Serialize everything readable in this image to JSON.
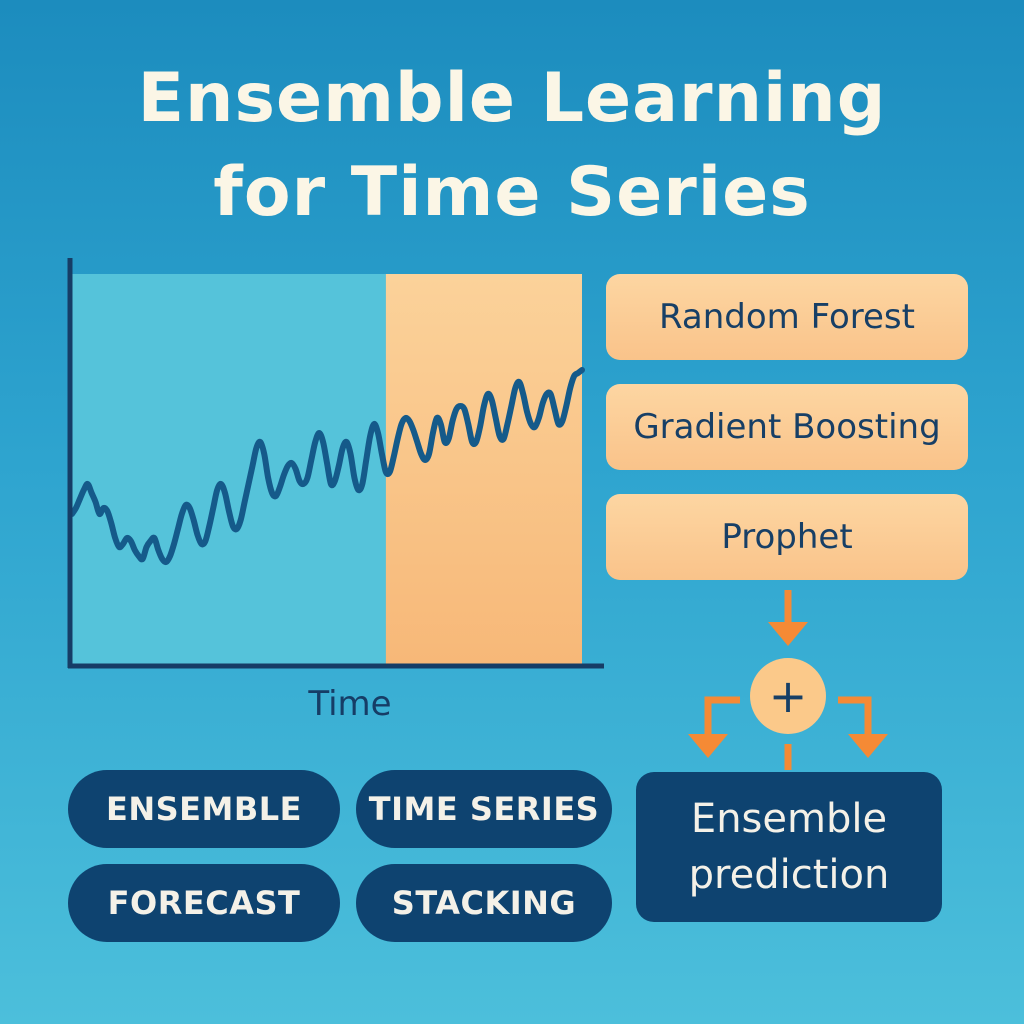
{
  "title": {
    "line1": "Ensemble Learning",
    "line2": "for Time Series"
  },
  "chart_data": {
    "type": "line",
    "xlabel": "Time",
    "ylabel": "",
    "x": [
      0,
      1,
      2,
      3,
      4,
      5,
      6,
      7,
      8,
      9,
      10,
      11,
      12,
      13,
      14,
      15,
      16,
      17,
      18,
      19,
      20,
      21,
      22,
      23,
      24,
      25,
      26,
      27,
      28,
      29,
      30,
      31,
      32,
      33,
      34,
      35,
      36,
      37,
      38,
      39,
      40,
      41,
      42,
      43,
      44,
      45,
      46,
      47,
      48,
      49,
      50,
      51,
      52,
      53,
      54,
      55,
      56,
      57,
      58,
      59,
      60,
      61,
      62,
      63,
      64,
      65,
      66,
      67,
      68,
      69,
      70,
      71,
      72,
      73,
      74,
      75,
      76,
      77,
      78,
      79,
      80,
      81,
      82,
      83,
      84,
      85,
      86,
      87,
      88,
      89,
      90,
      91,
      92,
      93,
      94,
      95,
      96,
      97,
      98,
      99,
      100,
      101,
      102,
      103,
      104,
      105,
      106,
      107,
      108,
      109,
      110,
      111,
      112,
      113,
      114,
      115,
      116,
      117,
      118,
      119,
      120,
      121,
      122,
      123,
      124,
      125,
      126,
      127,
      128,
      129,
      130
    ],
    "series": [
      {
        "values": [
          20,
          22,
          25,
          28,
          30,
          27,
          24,
          20,
          22,
          21,
          17,
          12,
          9,
          10,
          12,
          11,
          8,
          6,
          5,
          9,
          11,
          12,
          8,
          5,
          4,
          6,
          10,
          15,
          20,
          23,
          22,
          18,
          13,
          10,
          11,
          16,
          22,
          28,
          30,
          27,
          21,
          16,
          15,
          18,
          24,
          30,
          36,
          42,
          44,
          40,
          32,
          27,
          26,
          29,
          33,
          36,
          37,
          35,
          31,
          30,
          32,
          38,
          44,
          47,
          44,
          37,
          30,
          31,
          36,
          42,
          44,
          40,
          32,
          28,
          30,
          38,
          46,
          50,
          47,
          40,
          34,
          34,
          39,
          45,
          50,
          52,
          51,
          48,
          44,
          40,
          38,
          40,
          47,
          52,
          50,
          44,
          45,
          51,
          55,
          56,
          55,
          50,
          44,
          44,
          49,
          56,
          60,
          58,
          52,
          46,
          45,
          50,
          56,
          62,
          64,
          60,
          54,
          50,
          49,
          52,
          57,
          60,
          60,
          55,
          50,
          51,
          56,
          62,
          66,
          67,
          68
        ]
      }
    ],
    "xlim": [
      0,
      130
    ],
    "ylim": [
      -30,
      100
    ],
    "forecast_start_x": 80,
    "grid": false,
    "colors": {
      "history": "#55c3da",
      "forecast_top": "#fbd29a",
      "forecast_bottom": "#f7b878",
      "line": "#155a8a",
      "axis": "#163d66"
    }
  },
  "models": [
    "Random Forest",
    "Gradient Boosting",
    "Prophet"
  ],
  "combine_symbol": "+",
  "result": {
    "line1": "Ensemble",
    "line2": "prediction"
  },
  "tags": [
    "ENSEMBLE",
    "TIME SERIES",
    "FORECAST",
    "STACKING"
  ],
  "colors": {
    "arrow": "#f58a35",
    "tag_bg": "#0e4370",
    "model_bg": "#fbcd93"
  }
}
